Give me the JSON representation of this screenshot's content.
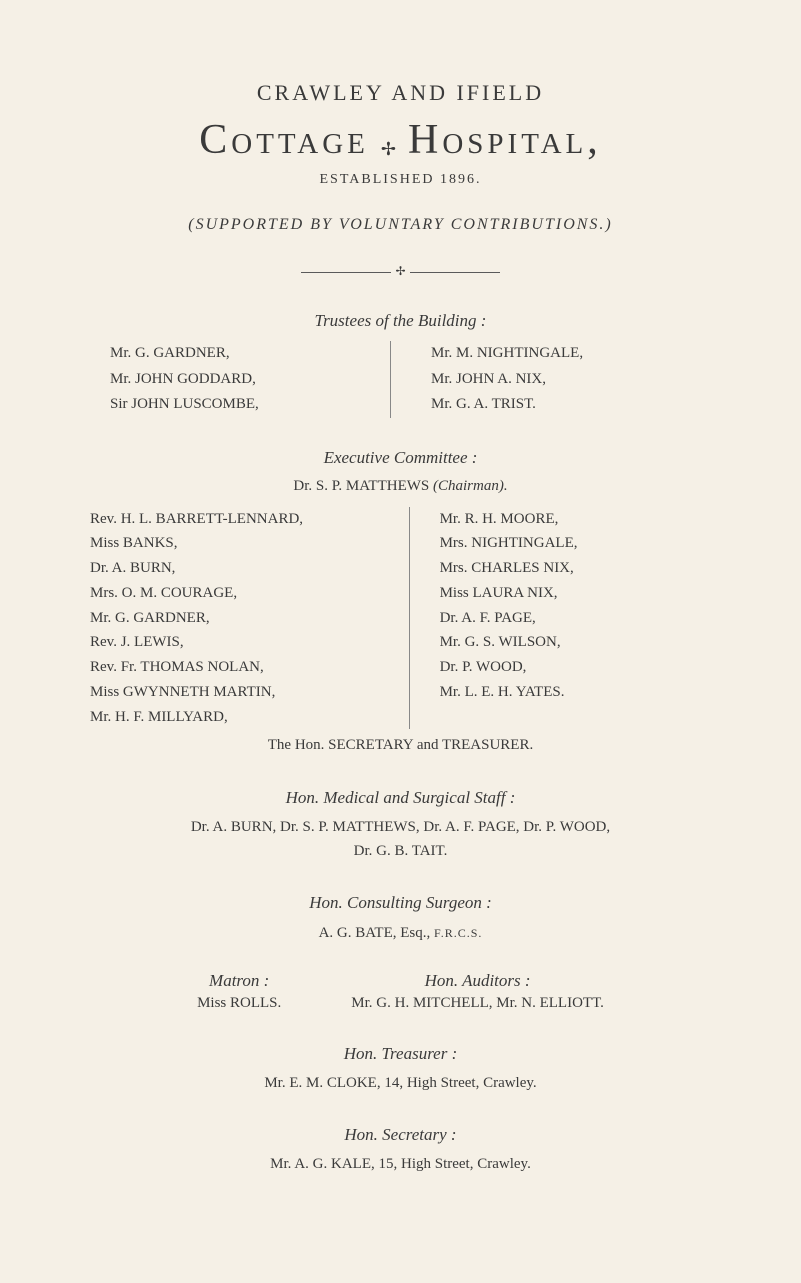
{
  "preTitle": "CRAWLEY  AND  IFIELD",
  "title": {
    "word1": "Cottage",
    "sep": "✢",
    "word2": "Hospital,"
  },
  "established": "ESTABLISHED 1896.",
  "supported": "(SUPPORTED BY VOLUNTARY CONTRIBUTIONS.)",
  "ruleGlyph": "✢",
  "trustees": {
    "heading": "Trustees of the Building :",
    "left": [
      "Mr. G. GARDNER,",
      "Mr. JOHN GODDARD,",
      "Sir JOHN LUSCOMBE,"
    ],
    "right": [
      "Mr. M. NIGHTINGALE,",
      "Mr. JOHN A. NIX,",
      "Mr. G. A. TRIST."
    ]
  },
  "committee": {
    "heading": "Executive Committee :",
    "chairmanLabel": "(Chairman).",
    "chairman": "Dr. S. P. MATTHEWS ",
    "left": [
      "Rev. H. L. BARRETT-LENNARD,",
      "Miss BANKS,",
      "Dr. A. BURN,",
      "Mrs. O. M. COURAGE,",
      "Mr. G. GARDNER,",
      "Rev. J. LEWIS,",
      "Rev. Fr. THOMAS NOLAN,",
      "Miss GWYNNETH MARTIN,",
      "Mr. H. F. MILLYARD,"
    ],
    "right": [
      "Mr. R. H. MOORE,",
      "Mrs. NIGHTINGALE,",
      "Mrs. CHARLES NIX,",
      "Miss LAURA NIX,",
      "Dr. A. F. PAGE,",
      "Mr. G. S. WILSON,",
      "Dr. P. WOOD,",
      "Mr. L. E. H. YATES."
    ],
    "secretary": "The Hon. SECRETARY and TREASURER."
  },
  "medical": {
    "heading": "Hon. Medical and Surgical Staff :",
    "line1": "Dr. A. BURN, Dr. S. P. MATTHEWS, Dr. A. F. PAGE, Dr. P. WOOD,",
    "line2": "Dr. G. B. TAIT."
  },
  "surgeon": {
    "heading": "Hon. Consulting Surgeon :",
    "name": "A. G. BATE, Esq., ",
    "post": "F.R.C.S."
  },
  "matron": {
    "heading": "Matron :",
    "name": "Miss ROLLS."
  },
  "auditors": {
    "heading": "Hon. Auditors :",
    "name": "Mr. G. H. MITCHELL, Mr. N. ELLIOTT."
  },
  "treasurer": {
    "heading": "Hon. Treasurer :",
    "name": "Mr. E. M. CLOKE, 14, High Street, Crawley."
  },
  "honsec": {
    "heading": "Hon. Secretary :",
    "name": "Mr. A. G. KALE, 15, High Street, Crawley."
  },
  "colors": {
    "background": "#f5f0e6",
    "text": "#3a3a3a",
    "rule": "#5a5a5a"
  }
}
